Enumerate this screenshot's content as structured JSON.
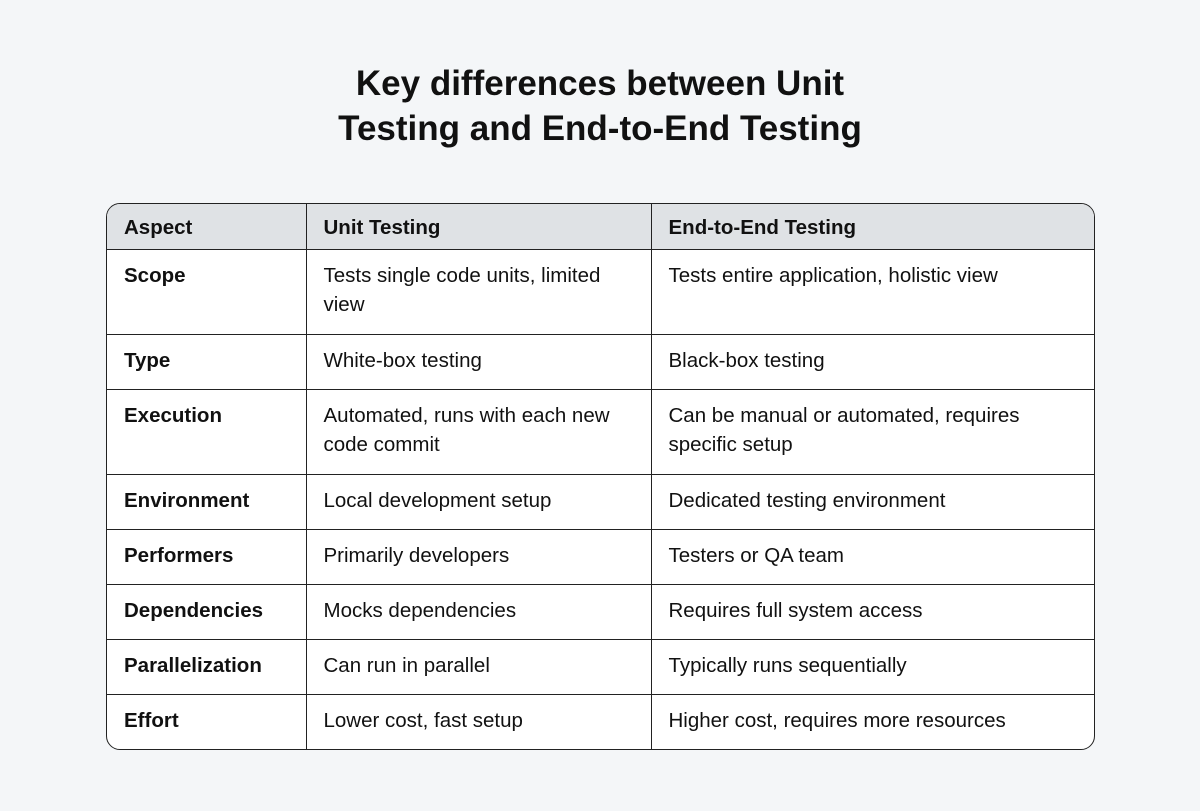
{
  "title": {
    "line1": "Key differences between Unit",
    "line2": "Testing and End-to-End Testing"
  },
  "table": {
    "headers": [
      "Aspect",
      "Unit Testing",
      "End-to-End Testing"
    ],
    "rows": [
      [
        "Scope",
        "Tests single code units, limited view",
        "Tests entire application, holistic view"
      ],
      [
        "Type",
        "White-box testing",
        "Black-box testing"
      ],
      [
        "Execution",
        "Automated, runs with each new code commit",
        "Can be manual or automated, requires specific setup"
      ],
      [
        "Environment",
        "Local development setup",
        "Dedicated testing environment"
      ],
      [
        "Performers",
        "Primarily developers",
        "Testers or QA team"
      ],
      [
        "Dependencies",
        "Mocks dependencies",
        "Requires full system access"
      ],
      [
        "Parallelization",
        "Can run in parallel",
        "Typically runs sequentially"
      ],
      [
        "Effort",
        "Lower cost, fast setup",
        "Higher cost, requires more resources"
      ]
    ]
  },
  "colors": {
    "background": "#f4f6f8",
    "header_bg": "#dfe2e5",
    "border": "#222222"
  }
}
